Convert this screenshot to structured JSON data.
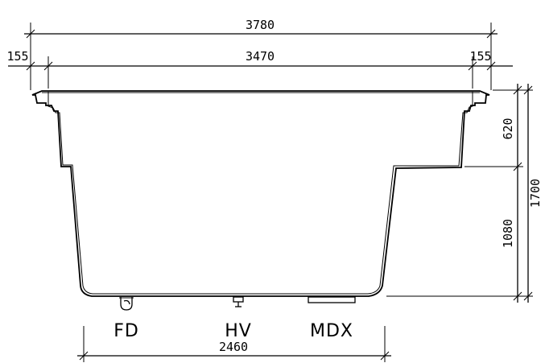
{
  "dimensions": {
    "overall_width": "3780",
    "inner_width": "3470",
    "left_flange": "155",
    "right_flange": "155",
    "upper_depth": "620",
    "lower_depth": "1080",
    "total_depth": "1700",
    "bottom_span": "2460"
  },
  "fittings": {
    "floor_drain": "FD",
    "hydro_valve": "HV",
    "mdx": "MDX"
  }
}
